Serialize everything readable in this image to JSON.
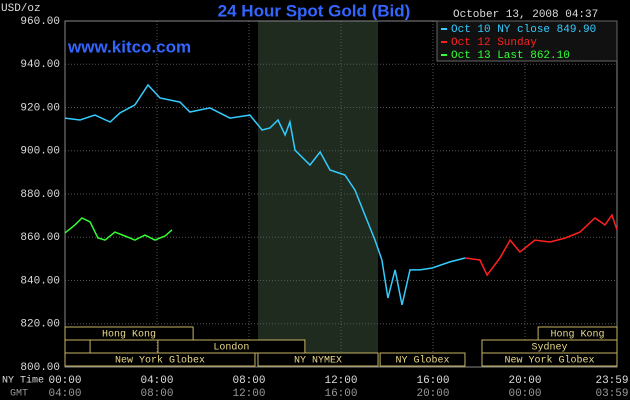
{
  "chart_data": {
    "type": "line",
    "title": "24 Hour Spot Gold (Bid)",
    "subtitle": "www.kitco.com",
    "timestamp": "October 13, 2008 04:37",
    "y_label": "USD/oz",
    "x_label": "NY Time",
    "x2_label": "GMT",
    "xlim": [
      0,
      24
    ],
    "ylim": [
      800,
      960
    ],
    "xticks": [
      {
        "value": 0,
        "label": "00:00"
      },
      {
        "value": 4,
        "label": "04:00"
      },
      {
        "value": 8,
        "label": "08:00"
      },
      {
        "value": 12,
        "label": "12:00"
      },
      {
        "value": 16,
        "label": "16:00"
      },
      {
        "value": 20,
        "label": "20:00"
      },
      {
        "value": 24,
        "label": "23:59"
      }
    ],
    "x2ticks": [
      {
        "value": 0,
        "label": "04:00"
      },
      {
        "value": 4,
        "label": "08:00"
      },
      {
        "value": 8,
        "label": "12:00"
      },
      {
        "value": 12,
        "label": "16:00"
      },
      {
        "value": 16,
        "label": "20:00"
      },
      {
        "value": 20,
        "label": "00:00"
      },
      {
        "value": 24,
        "label": "03:59"
      }
    ],
    "yticks": [
      {
        "value": 800,
        "label": "800.00"
      },
      {
        "value": 820,
        "label": "820.00"
      },
      {
        "value": 840,
        "label": "840.00"
      },
      {
        "value": 860,
        "label": "860.00"
      },
      {
        "value": 880,
        "label": "880.00"
      },
      {
        "value": 900,
        "label": "900.00"
      },
      {
        "value": 920,
        "label": "920.00"
      },
      {
        "value": 940,
        "label": "940.00"
      },
      {
        "value": 960,
        "label": "960.00"
      }
    ],
    "grid": true,
    "series": [
      {
        "name": "Oct 10 NY close 849.90",
        "color": "#33ccff",
        "x": [
          0,
          0.65,
          1.3,
          1.96,
          2.39,
          3.04,
          3.61,
          4.13,
          5.0,
          5.43,
          6.3,
          7.17,
          8.04,
          8.57,
          8.91,
          9.26,
          9.57,
          9.78,
          10.0,
          10.65,
          11.09,
          11.52,
          12.17,
          12.61,
          13.04,
          13.48,
          13.78,
          14.04,
          14.35,
          14.65,
          15.0,
          15.43,
          15.96,
          16.74,
          17.39
        ],
        "values": [
          915.1,
          914.2,
          916.5,
          913.3,
          917.5,
          921.2,
          930.4,
          924.4,
          922.5,
          917.9,
          919.8,
          915.1,
          916.5,
          909.6,
          910.5,
          914.2,
          907.3,
          913.3,
          900.3,
          893.4,
          899.4,
          891.1,
          888.8,
          881.8,
          870.3,
          858.7,
          849.5,
          831.9,
          844.9,
          828.7,
          844.9,
          844.9,
          845.8,
          848.6,
          850.4
        ]
      },
      {
        "name": "Oct 12 Sunday",
        "color": "#ff2020",
        "x": [
          17.39,
          18.04,
          18.35,
          18.91,
          19.35,
          19.78,
          20.43,
          21.09,
          21.74,
          22.39,
          23.04,
          23.48,
          23.78,
          24.0
        ],
        "values": [
          850.4,
          849.5,
          842.5,
          850.4,
          858.7,
          853.2,
          858.7,
          857.8,
          859.6,
          862.4,
          868.9,
          865.7,
          870.3,
          863.4
        ]
      },
      {
        "name": "Oct 13 Last 862.10",
        "color": "#33ff33",
        "x": [
          0,
          0.43,
          0.74,
          1.09,
          1.43,
          1.74,
          2.17,
          2.61,
          3.04,
          3.48,
          3.91,
          4.35,
          4.65
        ],
        "values": [
          862.0,
          865.7,
          868.9,
          867.1,
          859.7,
          858.7,
          862.4,
          860.6,
          858.7,
          861.0,
          858.7,
          860.6,
          863.4
        ]
      }
    ],
    "session_rows": [
      [
        {
          "label": "Hong Kong",
          "start": 0,
          "end": 5.57
        },
        {
          "label": "Hong Kong",
          "start": 20.57,
          "end": 24
        }
      ],
      [
        {
          "label": null,
          "start": 0,
          "end": 1.09
        },
        {
          "label": "London",
          "start": 4.04,
          "end": 10.43
        },
        {
          "label": "Sydney",
          "start": 18.13,
          "end": 24
        }
      ],
      [
        {
          "label": "New York Globex",
          "start": 0,
          "end": 8.26
        },
        {
          "label": "NY NYMEX",
          "start": 8.39,
          "end": 13.61
        },
        {
          "label": "NY Globex",
          "start": 13.7,
          "end": 17.39
        },
        {
          "label": "New York Globex",
          "start": 18.13,
          "end": 24
        }
      ]
    ]
  }
}
